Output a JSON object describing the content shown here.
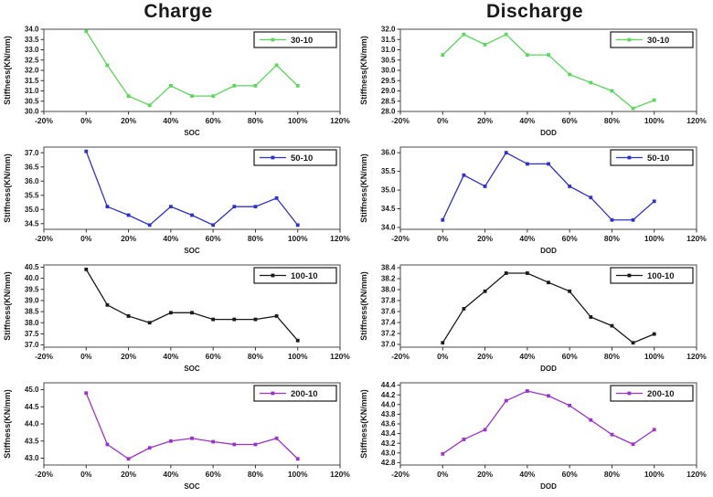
{
  "columns": [
    {
      "title": "Charge"
    },
    {
      "title": "Discharge"
    }
  ],
  "chart_data": [
    {
      "type": "line",
      "column": "Charge",
      "series": "30-10",
      "color": "#5CD65C",
      "xlabel": "SOC",
      "ylabel": "Stiffness(KN/mm)",
      "x": [
        0,
        10,
        20,
        30,
        40,
        50,
        60,
        70,
        80,
        90,
        100
      ],
      "values": [
        33.9,
        32.25,
        30.75,
        30.3,
        31.25,
        30.75,
        30.75,
        31.25,
        31.25,
        32.25,
        31.25
      ],
      "xlim": [
        -20,
        120
      ],
      "xticks": [
        -20,
        0,
        20,
        40,
        60,
        80,
        100,
        120
      ],
      "ylim": [
        30.0,
        34.0
      ],
      "yticks": [
        30.0,
        30.5,
        31.0,
        31.5,
        32.0,
        32.5,
        33.0,
        33.5,
        34.0
      ],
      "legend_position": "top-right"
    },
    {
      "type": "line",
      "column": "Discharge",
      "series": "30-10",
      "color": "#5CD65C",
      "xlabel": "DOD",
      "ylabel": "Stiffness(KN/mm)",
      "x": [
        0,
        10,
        20,
        30,
        40,
        50,
        60,
        70,
        80,
        90,
        100
      ],
      "values": [
        30.75,
        31.75,
        31.25,
        31.75,
        30.75,
        30.75,
        29.8,
        29.4,
        29.0,
        28.15,
        28.55
      ],
      "xlim": [
        -20,
        120
      ],
      "xticks": [
        -20,
        0,
        20,
        40,
        60,
        80,
        100,
        120
      ],
      "ylim": [
        28.0,
        32.0
      ],
      "yticks": [
        28.0,
        28.5,
        29.0,
        29.5,
        30.0,
        30.5,
        31.0,
        31.5,
        32.0
      ],
      "legend_position": "top-right"
    },
    {
      "type": "line",
      "column": "Charge",
      "series": "50-10",
      "color": "#3030CC",
      "xlabel": "SOC",
      "ylabel": "Stiffness(KN/mm)",
      "x": [
        0,
        10,
        20,
        30,
        40,
        50,
        60,
        70,
        80,
        90,
        100
      ],
      "values": [
        37.05,
        35.1,
        34.8,
        34.45,
        35.1,
        34.8,
        34.45,
        35.1,
        35.1,
        35.4,
        34.45
      ],
      "xlim": [
        -20,
        120
      ],
      "xticks": [
        -20,
        0,
        20,
        40,
        60,
        80,
        100,
        120
      ],
      "ylim": [
        34.3,
        37.2
      ],
      "yticks": [
        34.5,
        35.0,
        35.5,
        36.0,
        36.5,
        37.0
      ],
      "legend_position": "top-right"
    },
    {
      "type": "line",
      "column": "Discharge",
      "series": "50-10",
      "color": "#3030CC",
      "xlabel": "DOD",
      "ylabel": "Stiffness(KN/mm)",
      "x": [
        0,
        10,
        20,
        30,
        40,
        50,
        60,
        70,
        80,
        90,
        100
      ],
      "values": [
        34.2,
        35.4,
        35.1,
        36.0,
        35.7,
        35.7,
        35.1,
        34.8,
        34.2,
        34.2,
        34.7
      ],
      "xlim": [
        -20,
        120
      ],
      "xticks": [
        -20,
        0,
        20,
        40,
        60,
        80,
        100,
        120
      ],
      "ylim": [
        33.95,
        36.15
      ],
      "yticks": [
        34.0,
        34.5,
        35.0,
        35.5,
        36.0
      ],
      "legend_position": "top-right"
    },
    {
      "type": "line",
      "column": "Charge",
      "series": "100-10",
      "color": "#1A1A1A",
      "xlabel": "SOC",
      "ylabel": "Stiffness(KN/mm)",
      "x": [
        0,
        10,
        20,
        30,
        40,
        50,
        60,
        70,
        80,
        90,
        100
      ],
      "values": [
        40.4,
        38.8,
        38.3,
        38.0,
        38.45,
        38.45,
        38.15,
        38.15,
        38.15,
        38.3,
        37.2
      ],
      "xlim": [
        -20,
        120
      ],
      "xticks": [
        -20,
        0,
        20,
        40,
        60,
        80,
        100,
        120
      ],
      "ylim": [
        36.9,
        40.6
      ],
      "yticks": [
        37.0,
        37.5,
        38.0,
        38.5,
        39.0,
        39.5,
        40.0,
        40.5
      ],
      "legend_position": "top-right"
    },
    {
      "type": "line",
      "column": "Discharge",
      "series": "100-10",
      "color": "#1A1A1A",
      "xlabel": "DOD",
      "ylabel": "Stiffness(KN/mm)",
      "x": [
        0,
        10,
        20,
        30,
        40,
        50,
        60,
        70,
        80,
        90,
        100
      ],
      "values": [
        37.03,
        37.65,
        37.97,
        38.3,
        38.3,
        38.13,
        37.97,
        37.5,
        37.34,
        37.03,
        37.19
      ],
      "xlim": [
        -20,
        120
      ],
      "xticks": [
        -20,
        0,
        20,
        40,
        60,
        80,
        100,
        120
      ],
      "ylim": [
        36.95,
        38.45
      ],
      "yticks": [
        37.0,
        37.2,
        37.4,
        37.6,
        37.8,
        38.0,
        38.2,
        38.4
      ],
      "legend_position": "top-right"
    },
    {
      "type": "line",
      "column": "Charge",
      "series": "200-10",
      "color": "#9933CC",
      "xlabel": "SOC",
      "ylabel": "Stiffness(KN/mm)",
      "x": [
        0,
        10,
        20,
        30,
        40,
        50,
        60,
        70,
        80,
        90,
        100
      ],
      "values": [
        44.9,
        43.4,
        42.98,
        43.3,
        43.5,
        43.58,
        43.48,
        43.4,
        43.4,
        43.58,
        42.98
      ],
      "xlim": [
        -20,
        120
      ],
      "xticks": [
        -20,
        0,
        20,
        40,
        60,
        80,
        100,
        120
      ],
      "ylim": [
        42.8,
        45.2
      ],
      "yticks": [
        43.0,
        43.5,
        44.0,
        44.5,
        45.0
      ],
      "legend_position": "top-right"
    },
    {
      "type": "line",
      "column": "Discharge",
      "series": "200-10",
      "color": "#9933CC",
      "xlabel": "DOD",
      "ylabel": "Stiffness(KN/mm)",
      "x": [
        0,
        10,
        20,
        30,
        40,
        50,
        60,
        70,
        80,
        90,
        100
      ],
      "values": [
        42.98,
        43.28,
        43.48,
        44.08,
        44.28,
        44.18,
        43.98,
        43.68,
        43.38,
        43.18,
        43.48
      ],
      "xlim": [
        -20,
        120
      ],
      "xticks": [
        -20,
        0,
        20,
        40,
        60,
        80,
        100,
        120
      ],
      "ylim": [
        42.75,
        44.45
      ],
      "yticks": [
        42.8,
        43.0,
        43.2,
        43.4,
        43.6,
        43.8,
        44.0,
        44.2,
        44.4
      ],
      "legend_position": "top-right"
    }
  ]
}
